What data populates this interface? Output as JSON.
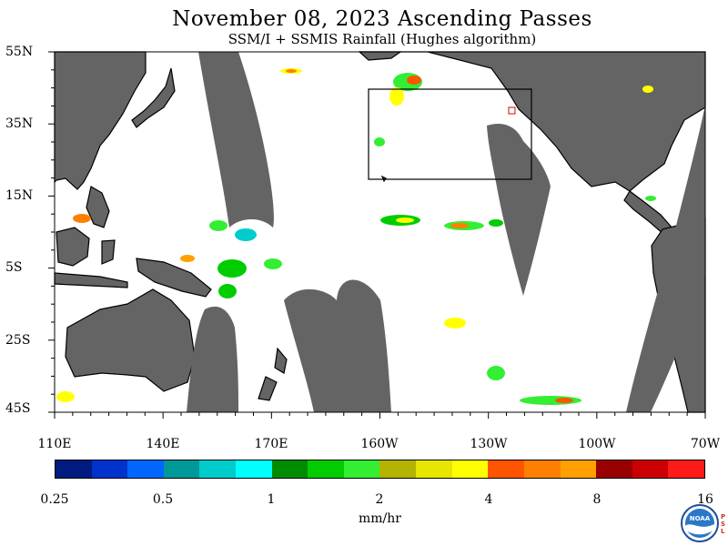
{
  "title": "November 08, 2023  Ascending Passes",
  "subtitle": "SSM/I + SSMIS Rainfall (Hughes algorithm)",
  "lat_labels": [
    "55N",
    "35N",
    "15N",
    "5S",
    "25S",
    "45S"
  ],
  "lon_labels": [
    "110E",
    "140E",
    "170E",
    "160W",
    "130W",
    "100W",
    "70W"
  ],
  "colorbar": {
    "colors": [
      "#001a80",
      "#0033cc",
      "#0066ff",
      "#009999",
      "#00cccc",
      "#00ffff",
      "#008c00",
      "#00cc00",
      "#33ee33",
      "#b3b300",
      "#e6e600",
      "#ffff00",
      "#ff5500",
      "#ff8000",
      "#ffa000",
      "#990000",
      "#cc0000",
      "#ff1a1a"
    ],
    "tick_labels": [
      "0.25",
      "0.5",
      "1",
      "2",
      "4",
      "8",
      "16"
    ],
    "units": "mm/hr"
  },
  "logo_text": "NOAA",
  "psl_text": "PSL"
}
